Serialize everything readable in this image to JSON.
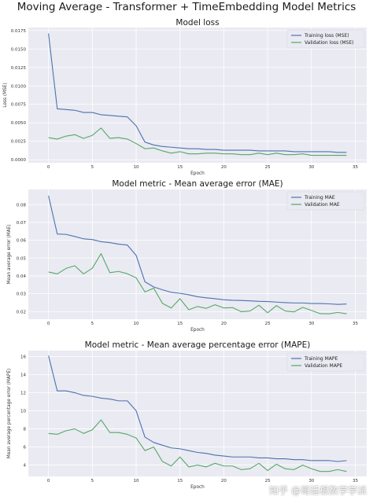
{
  "suptitle": "Moving Average - Transformer + TimeEmbedding Model Metrics",
  "watermark": "知乎 @哥廷根数学学派",
  "colors": {
    "train": "#4c72b0",
    "val": "#55a868",
    "panel": "#eaeaf2",
    "grid": "#ffffff"
  },
  "chart_data": [
    {
      "type": "line",
      "title": "Model loss",
      "xlabel": "Epoch",
      "ylabel": "Loss (MSE)",
      "xlim": [
        -2.3,
        36.3
      ],
      "ylim": [
        -0.0004,
        0.0179
      ],
      "xticks": [
        0,
        5,
        10,
        15,
        20,
        25,
        30,
        35
      ],
      "yticks": [
        0,
        0.0025,
        0.005,
        0.0075,
        0.01,
        0.0125,
        0.015,
        0.0175
      ],
      "ytick_labels": [
        "0.0000",
        "0.0025",
        "0.0050",
        "0.0075",
        "0.0100",
        "0.0125",
        "0.0150",
        "0.0175"
      ],
      "legend_loc": "upper right",
      "series": [
        {
          "name": "Training loss (MSE)",
          "color_key": "train",
          "values": [
            0.0171,
            0.0069,
            0.0068,
            0.0067,
            0.0064,
            0.0064,
            0.0061,
            0.006,
            0.0059,
            0.0058,
            0.0046,
            0.0024,
            0.002,
            0.0018,
            0.0017,
            0.0016,
            0.0015,
            0.0015,
            0.0014,
            0.0014,
            0.0013,
            0.0013,
            0.0013,
            0.0013,
            0.0012,
            0.0012,
            0.0012,
            0.0012,
            0.0011,
            0.0011,
            0.0011,
            0.0011,
            0.0011,
            0.001,
            0.001
          ]
        },
        {
          "name": "Validation loss (MSE)",
          "color_key": "val",
          "values": [
            0.003,
            0.0028,
            0.0032,
            0.0034,
            0.0029,
            0.0033,
            0.0043,
            0.0029,
            0.003,
            0.0028,
            0.0022,
            0.0015,
            0.0016,
            0.0012,
            0.0009,
            0.0011,
            0.0008,
            0.0008,
            0.0009,
            0.0009,
            0.0008,
            0.0008,
            0.0007,
            0.0007,
            0.0009,
            0.0007,
            0.0009,
            0.0007,
            0.0007,
            0.0008,
            0.0006,
            0.0006,
            0.0006,
            0.0006,
            0.0006
          ]
        }
      ]
    },
    {
      "type": "line",
      "title": "Model metric - Mean average error (MAE)",
      "xlabel": "Epoch",
      "ylabel": "Mean average error (MAE)",
      "xlim": [
        -2.3,
        36.3
      ],
      "ylim": [
        0.0157,
        0.0885
      ],
      "xticks": [
        0,
        5,
        10,
        15,
        20,
        25,
        30,
        35
      ],
      "yticks": [
        0.02,
        0.03,
        0.04,
        0.05,
        0.06,
        0.07,
        0.08
      ],
      "ytick_labels": [
        "0.02",
        "0.03",
        "0.04",
        "0.05",
        "0.06",
        "0.07",
        "0.08"
      ],
      "legend_loc": "upper right",
      "series": [
        {
          "name": "Training MAE",
          "color_key": "train",
          "values": [
            0.085,
            0.0635,
            0.0633,
            0.0621,
            0.0608,
            0.0604,
            0.0592,
            0.0587,
            0.0578,
            0.0573,
            0.0515,
            0.0367,
            0.0338,
            0.0322,
            0.0308,
            0.0302,
            0.0294,
            0.0283,
            0.0277,
            0.0272,
            0.0266,
            0.0263,
            0.0262,
            0.026,
            0.0257,
            0.0256,
            0.0253,
            0.025,
            0.0248,
            0.0248,
            0.0245,
            0.0245,
            0.0243,
            0.024,
            0.0242
          ]
        },
        {
          "name": "Validation MAE",
          "color_key": "val",
          "values": [
            0.0422,
            0.0411,
            0.0442,
            0.0457,
            0.0411,
            0.0443,
            0.0525,
            0.0418,
            0.0425,
            0.0412,
            0.0389,
            0.031,
            0.0331,
            0.0246,
            0.022,
            0.0272,
            0.021,
            0.0228,
            0.0218,
            0.0238,
            0.022,
            0.0222,
            0.0199,
            0.0203,
            0.0235,
            0.0193,
            0.0233,
            0.0203,
            0.0198,
            0.0223,
            0.0206,
            0.0188,
            0.0187,
            0.0195,
            0.0187
          ]
        }
      ]
    },
    {
      "type": "line",
      "title": "Model metric - Mean average percentage error (MAPE)",
      "xlabel": "Epoch",
      "ylabel": "Mean average percentage error (MAPE)",
      "xlim": [
        -2.3,
        36.3
      ],
      "ylim": [
        2.75,
        16.65
      ],
      "xticks": [
        0,
        5,
        10,
        15,
        20,
        25,
        30,
        35
      ],
      "yticks": [
        4,
        6,
        8,
        10,
        12,
        14,
        16
      ],
      "ytick_labels": [
        "4",
        "6",
        "8",
        "10",
        "12",
        "14",
        "16"
      ],
      "legend_loc": "upper right",
      "series": [
        {
          "name": "Training MAPE",
          "color_key": "train",
          "values": [
            16.1,
            12.2,
            12.2,
            12.0,
            11.7,
            11.6,
            11.4,
            11.3,
            11.1,
            11.1,
            10.0,
            7.1,
            6.5,
            6.2,
            5.9,
            5.8,
            5.6,
            5.4,
            5.3,
            5.1,
            5.0,
            4.9,
            4.9,
            4.9,
            4.8,
            4.8,
            4.7,
            4.7,
            4.6,
            4.6,
            4.5,
            4.5,
            4.5,
            4.4,
            4.5
          ]
        },
        {
          "name": "Validation MAPE",
          "color_key": "val",
          "values": [
            7.5,
            7.4,
            7.8,
            8.0,
            7.5,
            7.9,
            9.0,
            7.6,
            7.6,
            7.4,
            7.0,
            5.6,
            6.0,
            4.4,
            3.9,
            4.9,
            3.8,
            4.0,
            3.8,
            4.2,
            3.9,
            3.9,
            3.5,
            3.6,
            4.2,
            3.4,
            4.1,
            3.6,
            3.5,
            4.0,
            3.6,
            3.3,
            3.3,
            3.5,
            3.3
          ]
        }
      ]
    }
  ]
}
